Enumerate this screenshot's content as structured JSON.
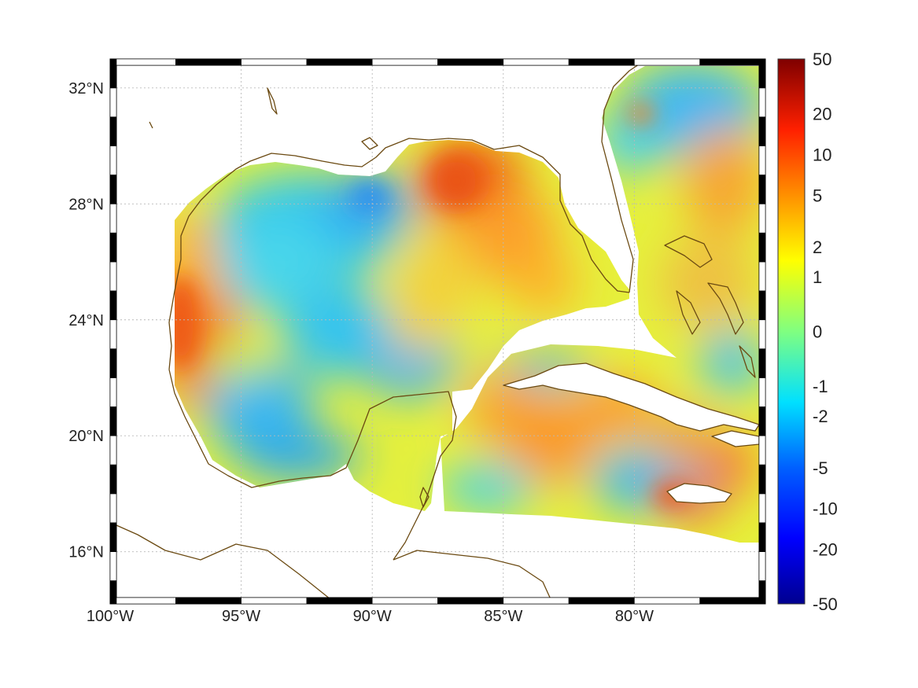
{
  "map": {
    "lon_range": [
      -100,
      -75
    ],
    "lat_range": [
      14.2,
      33
    ],
    "longitude_labels": [
      {
        "lon": -100,
        "text": "100°W"
      },
      {
        "lon": -95,
        "text": "95°W"
      },
      {
        "lon": -90,
        "text": "90°W"
      },
      {
        "lon": -85,
        "text": "85°W"
      },
      {
        "lon": -80,
        "text": "80°W"
      }
    ],
    "latitude_labels": [
      {
        "lat": 32,
        "text": "32°N"
      },
      {
        "lat": 28,
        "text": "28°N"
      },
      {
        "lat": 24,
        "text": "24°N"
      },
      {
        "lat": 20,
        "text": "20°N"
      },
      {
        "lat": 16,
        "text": "16°N"
      }
    ],
    "grid": true,
    "coastline_color": "#6b4a12"
  },
  "colorbar": {
    "placement": "right",
    "tick_labels": [
      "50",
      "20",
      "10",
      "5",
      "2",
      "1",
      "0",
      "-1",
      "-2",
      "-5",
      "-10",
      "-20",
      "-50"
    ],
    "colormap": "jet",
    "colors": [
      "#7f0000",
      "#ff0000",
      "#ff8000",
      "#ffff00",
      "#80ff80",
      "#00ffff",
      "#0080ff",
      "#0000ff",
      "#00008f"
    ]
  },
  "field_regions": [
    {
      "name": "western-gulf-warm",
      "lon": -98.5,
      "lat": 24.5,
      "value": 6
    },
    {
      "name": "central-gulf-cold",
      "lon": -92.5,
      "lat": 24.0,
      "value": -2
    },
    {
      "name": "northern-gulf-cold",
      "lon": -91.5,
      "lat": 28.0,
      "value": -2
    },
    {
      "name": "eastern-gulf-warm",
      "lon": -86.0,
      "lat": 28.5,
      "value": 6
    },
    {
      "name": "loop-current-band",
      "lon": -88.0,
      "lat": 25.5,
      "value": 2
    },
    {
      "name": "campeche-bay-cold",
      "lon": -94.0,
      "lat": 20.0,
      "value": -2
    },
    {
      "name": "caribbean-warm",
      "lon": -84.5,
      "lat": 20.5,
      "value": 4
    },
    {
      "name": "caribbean-cold",
      "lon": -81.5,
      "lat": 18.0,
      "value": -2
    },
    {
      "name": "atlantic-cold",
      "lon": -79.5,
      "lat": 31.0,
      "value": -2
    },
    {
      "name": "atlantic-warm",
      "lon": -77.5,
      "lat": 29.0,
      "value": 4
    }
  ]
}
